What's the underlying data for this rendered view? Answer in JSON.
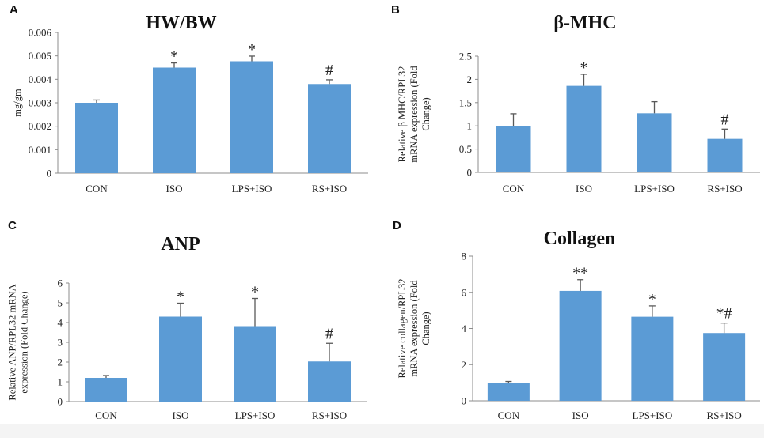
{
  "chart_data": [
    {
      "panel": "A",
      "type": "bar",
      "title": "HW/BW",
      "ylabel": "mg/gm",
      "ylabel_lines": [
        "mg/gm"
      ],
      "categories": [
        "CON",
        "ISO",
        "LPS+ISO",
        "RS+ISO"
      ],
      "values": [
        0.003,
        0.0045,
        0.00477,
        0.0038
      ],
      "errors": [
        0.00012,
        0.0002,
        0.00022,
        0.00018
      ],
      "annotations": [
        "",
        "*",
        "*",
        "#"
      ],
      "ylim": [
        0,
        0.006
      ],
      "yticks": [
        "0",
        "0.001",
        "0.002",
        "0.003",
        "0.004",
        "0.005",
        "0.006"
      ],
      "ytick_values": [
        0,
        0.001,
        0.002,
        0.003,
        0.004,
        0.005,
        0.006
      ]
    },
    {
      "panel": "B",
      "type": "bar",
      "title": "β-MHC",
      "ylabel": "Relative β MHC/RPL32 mRNA expression (Fold Change)",
      "ylabel_lines": [
        "Relative β MHC/RPL32",
        "mRNA expression (Fold",
        "Change)"
      ],
      "categories": [
        "CON",
        "ISO",
        "LPS+ISO",
        "RS+ISO"
      ],
      "values": [
        1.0,
        1.86,
        1.27,
        0.72
      ],
      "errors": [
        0.26,
        0.25,
        0.25,
        0.21
      ],
      "annotations": [
        "",
        "*",
        "",
        "#"
      ],
      "ylim": [
        0,
        2.5
      ],
      "yticks": [
        "0",
        "0.5",
        "1",
        "1.5",
        "2",
        "2.5"
      ],
      "ytick_values": [
        0,
        0.5,
        1,
        1.5,
        2,
        2.5
      ]
    },
    {
      "panel": "C",
      "type": "bar",
      "title": "ANP",
      "ylabel": "Relative ANP/RPL32 mRNA expression (Fold Change)",
      "ylabel_lines": [
        "Relative ANP/RPL32 mRNA",
        "expression (Fold Change)"
      ],
      "categories": [
        "CON",
        "ISO",
        "LPS+ISO",
        "RS+ISO"
      ],
      "values": [
        1.2,
        4.3,
        3.82,
        2.03
      ],
      "errors": [
        0.12,
        0.68,
        1.4,
        0.92
      ],
      "annotations": [
        "",
        "*",
        "*",
        "#"
      ],
      "ylim": [
        0,
        6
      ],
      "yticks": [
        "0",
        "1",
        "2",
        "3",
        "4",
        "5",
        "6"
      ],
      "ytick_values": [
        0,
        1,
        2,
        3,
        4,
        5,
        6
      ]
    },
    {
      "panel": "D",
      "type": "bar",
      "title": "Collagen",
      "ylabel": "Relative collagen/RPL32 mRNA expression (Fold Change)",
      "ylabel_lines": [
        "Relative collagen/RPL32",
        "mRNA expression (Fold",
        "Change)"
      ],
      "categories": [
        "CON",
        "ISO",
        "LPS+ISO",
        "RS+ISO"
      ],
      "values": [
        1.0,
        6.08,
        4.65,
        3.75
      ],
      "errors": [
        0.07,
        0.62,
        0.6,
        0.55
      ],
      "annotations": [
        "",
        "**",
        "*",
        "*#"
      ],
      "ylim": [
        0,
        8
      ],
      "yticks": [
        "0",
        "2",
        "4",
        "6",
        "8"
      ],
      "ytick_values": [
        0,
        2,
        4,
        6,
        8
      ]
    }
  ]
}
